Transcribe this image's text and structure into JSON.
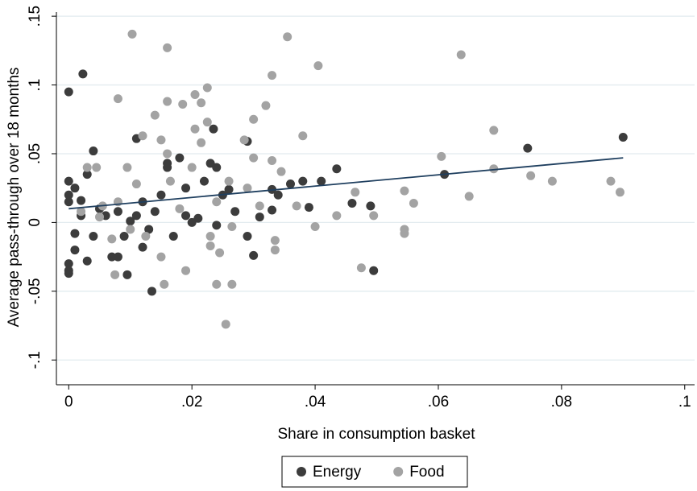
{
  "chart_data": {
    "type": "scatter",
    "x_label": "Share in consumption basket",
    "y_label": "Average pass-through over 18 months",
    "xlim": [
      -0.002,
      0.1016
    ],
    "ylim": [
      -0.118,
      0.153
    ],
    "xticks": [
      0,
      {
        "value": 0.02,
        "label": ".02"
      },
      {
        "value": 0.04,
        "label": ".04"
      },
      {
        "value": 0.06,
        "label": ".06"
      },
      {
        "value": 0.08,
        "label": ".08"
      },
      {
        "value": 0.1,
        "label": ".1"
      }
    ],
    "yticks": [
      {
        "value": -0.1,
        "label": "-.1"
      },
      {
        "value": -0.05,
        "label": "-.05"
      },
      0,
      {
        "value": 0.05,
        "label": ".05"
      },
      {
        "value": 0.1,
        "label": ".1"
      },
      {
        "value": 0.15,
        "label": ".15"
      }
    ],
    "grid": true,
    "legend": "bottom",
    "series": [
      {
        "name": "Energy",
        "color": "#3c3c3c",
        "x": [
          0,
          0.0023,
          0,
          0,
          0,
          0,
          0,
          0,
          0.001,
          0.001,
          0.001,
          0.002,
          0.002,
          0.003,
          0.003,
          0.004,
          0.004,
          0.005,
          0.006,
          0.007,
          0.008,
          0.008,
          0.009,
          0.0095,
          0.01,
          0.011,
          0.011,
          0.012,
          0.012,
          0.013,
          0.0135,
          0.014,
          0.015,
          0.016,
          0.016,
          0.017,
          0.018,
          0.019,
          0.019,
          0.02,
          0.021,
          0.022,
          0.023,
          0.024,
          0.0235,
          0.024,
          0.025,
          0.026,
          0.027,
          0.029,
          0.029,
          0.03,
          0.031,
          0.033,
          0.033,
          0.034,
          0.036,
          0.038,
          0.039,
          0.041,
          0.0435,
          0.046,
          0.049,
          0.0495,
          0.061,
          0.0745,
          0.09
        ],
        "values": [
          0.095,
          0.108,
          -0.03,
          -0.035,
          -0.037,
          0.03,
          0.02,
          0.015,
          0.025,
          -0.008,
          -0.02,
          0.016,
          0.005,
          -0.028,
          0.035,
          0.052,
          -0.01,
          0.01,
          0.005,
          -0.025,
          -0.025,
          0.008,
          -0.01,
          -0.038,
          0.001,
          0.061,
          0.005,
          -0.018,
          0.015,
          -0.005,
          -0.05,
          0.008,
          0.02,
          0.04,
          0.043,
          -0.01,
          0.047,
          0.005,
          0.025,
          0,
          0.003,
          0.03,
          0.043,
          0.04,
          0.068,
          -0.002,
          0.02,
          0.024,
          0.008,
          0.059,
          -0.01,
          -0.024,
          0.004,
          0.024,
          0.009,
          0.02,
          0.028,
          0.03,
          0.011,
          0.03,
          0.039,
          0.014,
          0.012,
          -0.035,
          0.035,
          0.054,
          0.062
        ]
      },
      {
        "name": "Food",
        "color": "#a3a3a3",
        "x": [
          0.0103,
          0.0355,
          0.016,
          0.0637,
          0.0405,
          0.033,
          0.0225,
          0.0205,
          0.008,
          0.016,
          0.0215,
          0.0185,
          0.032,
          0.014,
          0.03,
          0.0225,
          0.0205,
          0.069,
          0.038,
          0.012,
          0.015,
          0.0285,
          0.0215,
          0.016,
          0.0605,
          0.03,
          0.033,
          0.0045,
          0.003,
          0.0095,
          0.02,
          0.069,
          0.0345,
          0.075,
          0.0165,
          0.0785,
          0.088,
          0.011,
          0.026,
          0.029,
          0.0545,
          0.0465,
          0.0895,
          0.065,
          0.024,
          0.056,
          0.037,
          0.031,
          0.0055,
          0.008,
          0.0435,
          0.0495,
          0.04,
          0.0265,
          0.0545,
          0.0545,
          0.023,
          0.0125,
          0.007,
          0.0335,
          0.023,
          0.0335,
          0.0245,
          0.015,
          0.0475,
          0.019,
          0.0075,
          0.0155,
          0.024,
          0.0265,
          0.0255,
          0.002,
          0.005,
          0.01,
          0.018
        ],
        "values": [
          0.137,
          0.135,
          0.127,
          0.122,
          0.114,
          0.107,
          0.098,
          0.093,
          0.09,
          0.088,
          0.087,
          0.086,
          0.085,
          0.078,
          0.075,
          0.073,
          0.068,
          0.067,
          0.063,
          0.063,
          0.06,
          0.06,
          0.058,
          0.05,
          0.048,
          0.047,
          0.045,
          0.04,
          0.04,
          0.04,
          0.04,
          0.039,
          0.037,
          0.034,
          0.03,
          0.03,
          0.03,
          0.028,
          0.03,
          0.025,
          0.023,
          0.022,
          0.022,
          0.019,
          0.015,
          0.014,
          0.012,
          0.012,
          0.012,
          0.015,
          0.005,
          0.005,
          -0.003,
          -0.003,
          -0.005,
          -0.008,
          -0.01,
          -0.01,
          -0.012,
          -0.013,
          -0.017,
          -0.02,
          -0.022,
          -0.025,
          -0.033,
          -0.035,
          -0.038,
          -0.045,
          -0.045,
          -0.045,
          -0.074,
          0.008,
          0.004,
          -0.005,
          0.01
        ]
      }
    ],
    "fit": {
      "type": "line",
      "color": "#1f3f5f",
      "x": [
        0,
        0.09
      ],
      "values": [
        0.01,
        0.047
      ]
    }
  }
}
